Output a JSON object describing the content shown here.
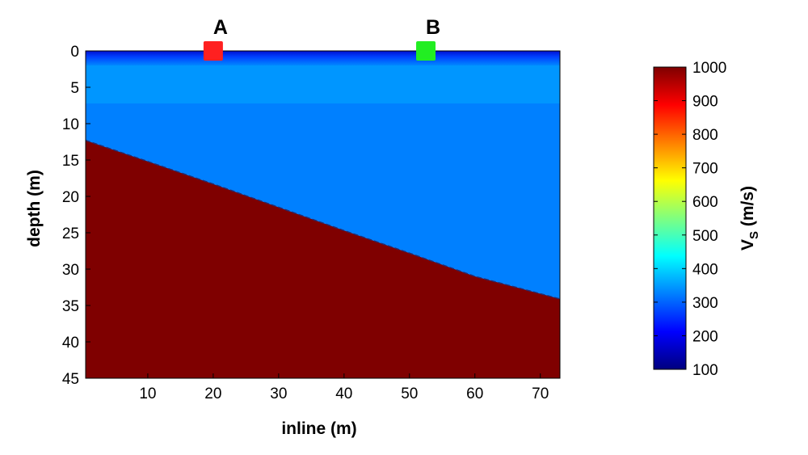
{
  "chart_data": {
    "type": "heatmap",
    "xlabel": "inline (m)",
    "ylabel": "depth (m)",
    "xlim": [
      0.5,
      73
    ],
    "ylim": [
      0,
      45
    ],
    "y_reversed": true,
    "grid": false,
    "xticks": [
      10,
      20,
      30,
      40,
      50,
      60,
      70
    ],
    "yticks": [
      0,
      5,
      10,
      15,
      20,
      25,
      30,
      35,
      40,
      45
    ],
    "colormap": "jet",
    "colorbar": {
      "label_main": "V",
      "label_sub": "S",
      "label_units": " (m/s)",
      "range": [
        100,
        1000
      ],
      "ticks": [
        100,
        200,
        300,
        400,
        500,
        600,
        700,
        800,
        900,
        1000
      ]
    },
    "layers": [
      {
        "top_depth": 0,
        "bottom_depth": 2,
        "vs": "gradient 100 to 310"
      },
      {
        "top_depth": 2,
        "bottom_depth": 7.3,
        "vs": 360
      },
      {
        "top_depth": 7.3,
        "bottom_depth": "interface",
        "vs": 320
      },
      {
        "top_depth": "interface",
        "bottom_depth": 45,
        "vs": 1000
      }
    ],
    "interface": [
      {
        "inline": 0.5,
        "depth": 12.3
      },
      {
        "inline": 10,
        "depth": 15.2
      },
      {
        "inline": 20,
        "depth": 18.3
      },
      {
        "inline": 30,
        "depth": 21.5
      },
      {
        "inline": 40,
        "depth": 24.7
      },
      {
        "inline": 50,
        "depth": 27.8
      },
      {
        "inline": 60,
        "depth": 31.0
      },
      {
        "inline": 73,
        "depth": 34.1
      }
    ],
    "markers": [
      {
        "label": "A",
        "inline": 20,
        "depth": 0,
        "color": "#ff2020"
      },
      {
        "label": "B",
        "inline": 52.5,
        "depth": 0,
        "color": "#22ee22"
      }
    ]
  }
}
